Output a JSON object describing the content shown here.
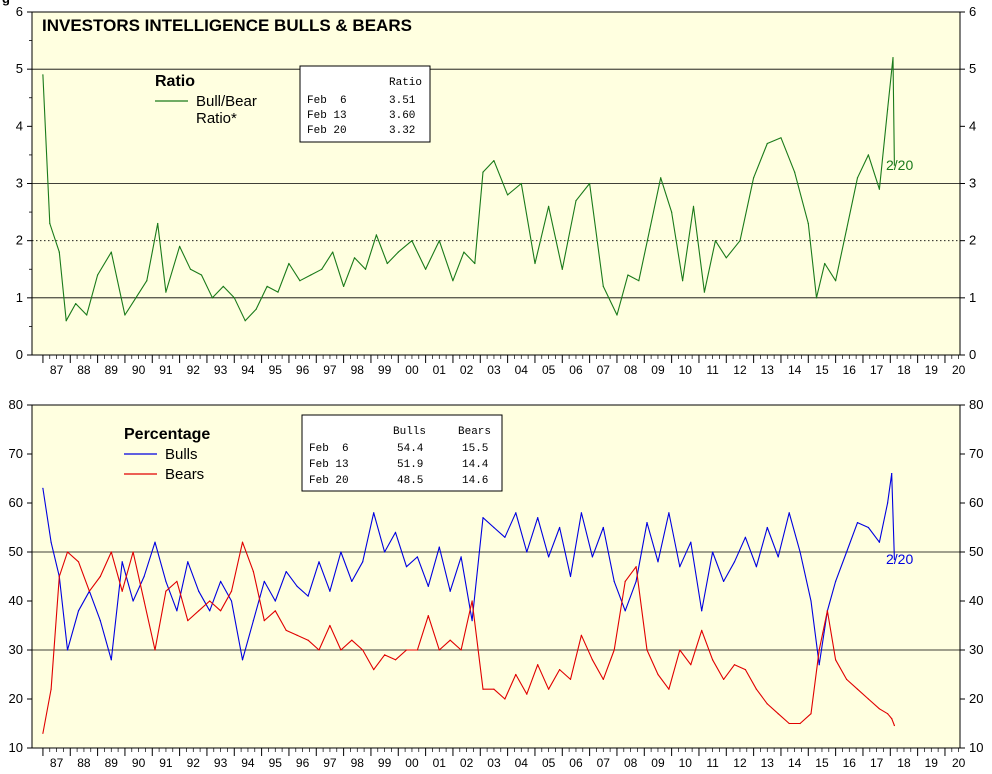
{
  "chart_data": [
    {
      "type": "line",
      "title": "INVESTORS INTELLIGENCE BULLS & BEARS",
      "legend_title": "Ratio",
      "legend_placement": "top-left",
      "ylim": [
        0,
        6
      ],
      "yticks": [
        "0",
        "1",
        "2",
        "3",
        "4",
        "5",
        "6"
      ],
      "x_categories": [
        "87",
        "88",
        "89",
        "90",
        "91",
        "92",
        "93",
        "94",
        "95",
        "96",
        "97",
        "98",
        "99",
        "00",
        "01",
        "02",
        "03",
        "04",
        "05",
        "06",
        "07",
        "08",
        "09",
        "10",
        "11",
        "12",
        "13",
        "14",
        "15",
        "16",
        "17",
        "18",
        "19",
        "20"
      ],
      "reference_lines": [
        {
          "y": 1,
          "style": "solid"
        },
        {
          "y": 2,
          "style": "dotted"
        },
        {
          "y": 3,
          "style": "solid"
        },
        {
          "y": 5,
          "style": "solid"
        }
      ],
      "series": [
        {
          "name": "Bull/Bear Ratio*",
          "color": "#1a7a1a",
          "end_label": "2/20",
          "x": [
            1987.0,
            1987.25,
            1987.6,
            1987.85,
            1988.2,
            1988.6,
            1989.0,
            1989.5,
            1990.0,
            1990.4,
            1990.8,
            1991.2,
            1991.5,
            1992.0,
            1992.4,
            1992.8,
            1993.2,
            1993.6,
            1994.0,
            1994.4,
            1994.8,
            1995.2,
            1995.6,
            1996.0,
            1996.4,
            1996.8,
            1997.2,
            1997.6,
            1998.0,
            1998.4,
            1998.8,
            1999.2,
            1999.6,
            2000.0,
            2000.5,
            2001.0,
            2001.5,
            2002.0,
            2002.4,
            2002.8,
            2003.1,
            2003.5,
            2004.0,
            2004.5,
            2005.0,
            2005.5,
            2006.0,
            2006.5,
            2007.0,
            2007.5,
            2008.0,
            2008.4,
            2008.8,
            2009.2,
            2009.6,
            2010.0,
            2010.4,
            2010.8,
            2011.2,
            2011.6,
            2012.0,
            2012.5,
            2013.0,
            2013.5,
            2014.0,
            2014.5,
            2015.0,
            2015.3,
            2015.6,
            2016.0,
            2016.4,
            2016.8,
            2017.2,
            2017.6,
            2017.9,
            2018.1,
            2018.15
          ],
          "values": [
            4.9,
            2.3,
            1.8,
            0.6,
            0.9,
            0.7,
            1.4,
            1.8,
            0.7,
            1.0,
            1.3,
            2.3,
            1.1,
            1.9,
            1.5,
            1.4,
            1.0,
            1.2,
            1.0,
            0.6,
            0.8,
            1.2,
            1.1,
            1.6,
            1.3,
            1.4,
            1.5,
            1.8,
            1.2,
            1.7,
            1.5,
            2.1,
            1.6,
            1.8,
            2.0,
            1.5,
            2.0,
            1.3,
            1.8,
            1.6,
            3.2,
            3.4,
            2.8,
            3.0,
            1.6,
            2.6,
            1.5,
            2.7,
            3.0,
            1.2,
            0.7,
            1.4,
            1.3,
            2.2,
            3.1,
            2.5,
            1.3,
            2.6,
            1.1,
            2.0,
            1.7,
            2.0,
            3.1,
            3.7,
            3.8,
            3.2,
            2.3,
            1.0,
            1.6,
            1.3,
            2.2,
            3.1,
            3.5,
            2.9,
            4.3,
            5.2,
            3.32
          ]
        }
      ],
      "table": {
        "header": [
          "",
          "Ratio"
        ],
        "rows": [
          [
            "Feb  6",
            "3.51"
          ],
          [
            "Feb 13",
            "3.60"
          ],
          [
            "Feb 20",
            "3.32"
          ]
        ]
      }
    },
    {
      "type": "line",
      "legend_title": "Percentage",
      "legend_placement": "top-left",
      "ylim": [
        10,
        80
      ],
      "yticks": [
        "10",
        "20",
        "30",
        "40",
        "50",
        "60",
        "70",
        "80"
      ],
      "x_categories": [
        "87",
        "88",
        "89",
        "90",
        "91",
        "92",
        "93",
        "94",
        "95",
        "96",
        "97",
        "98",
        "99",
        "00",
        "01",
        "02",
        "03",
        "04",
        "05",
        "06",
        "07",
        "08",
        "09",
        "10",
        "11",
        "12",
        "13",
        "14",
        "15",
        "16",
        "17",
        "18",
        "19",
        "20"
      ],
      "reference_lines": [
        {
          "y": 30,
          "style": "solid"
        },
        {
          "y": 50,
          "style": "solid"
        }
      ],
      "series": [
        {
          "name": "Bulls",
          "color": "#0000e0",
          "end_label": "2/20",
          "x": [
            1987.0,
            1987.3,
            1987.6,
            1987.9,
            1988.3,
            1988.7,
            1989.1,
            1989.5,
            1989.9,
            1990.3,
            1990.7,
            1991.1,
            1991.5,
            1991.9,
            1992.3,
            1992.7,
            1993.1,
            1993.5,
            1993.9,
            1994.3,
            1994.7,
            1995.1,
            1995.5,
            1995.9,
            1996.3,
            1996.7,
            1997.1,
            1997.5,
            1997.9,
            1998.3,
            1998.7,
            1999.1,
            1999.5,
            1999.9,
            2000.3,
            2000.7,
            2001.1,
            2001.5,
            2001.9,
            2002.3,
            2002.7,
            2003.1,
            2003.5,
            2003.9,
            2004.3,
            2004.7,
            2005.1,
            2005.5,
            2005.9,
            2006.3,
            2006.7,
            2007.1,
            2007.5,
            2007.9,
            2008.3,
            2008.7,
            2009.1,
            2009.5,
            2009.9,
            2010.3,
            2010.7,
            2011.1,
            2011.5,
            2011.9,
            2012.3,
            2012.7,
            2013.1,
            2013.5,
            2013.9,
            2014.3,
            2014.7,
            2015.1,
            2015.4,
            2015.7,
            2016.0,
            2016.4,
            2016.8,
            2017.2,
            2017.6,
            2017.9,
            2018.05,
            2018.15
          ],
          "values": [
            63,
            52,
            45,
            30,
            38,
            42,
            36,
            28,
            48,
            40,
            45,
            52,
            44,
            38,
            48,
            42,
            38,
            44,
            40,
            28,
            36,
            44,
            40,
            46,
            43,
            41,
            48,
            42,
            50,
            44,
            48,
            58,
            50,
            54,
            47,
            49,
            43,
            51,
            42,
            49,
            36,
            57,
            55,
            53,
            58,
            50,
            57,
            49,
            55,
            45,
            58,
            49,
            55,
            44,
            38,
            44,
            56,
            48,
            58,
            47,
            52,
            38,
            50,
            44,
            48,
            53,
            47,
            55,
            49,
            58,
            50,
            40,
            27,
            38,
            44,
            50,
            56,
            55,
            52,
            60,
            66,
            48.5
          ]
        },
        {
          "name": "Bears",
          "color": "#e00000",
          "x": [
            1987.0,
            1987.3,
            1987.6,
            1987.9,
            1988.3,
            1988.7,
            1989.1,
            1989.5,
            1989.9,
            1990.3,
            1990.7,
            1991.1,
            1991.5,
            1991.9,
            1992.3,
            1992.7,
            1993.1,
            1993.5,
            1993.9,
            1994.3,
            1994.7,
            1995.1,
            1995.5,
            1995.9,
            1996.3,
            1996.7,
            1997.1,
            1997.5,
            1997.9,
            1998.3,
            1998.7,
            1999.1,
            1999.5,
            1999.9,
            2000.3,
            2000.7,
            2001.1,
            2001.5,
            2001.9,
            2002.3,
            2002.7,
            2003.1,
            2003.5,
            2003.9,
            2004.3,
            2004.7,
            2005.1,
            2005.5,
            2005.9,
            2006.3,
            2006.7,
            2007.1,
            2007.5,
            2007.9,
            2008.3,
            2008.7,
            2009.1,
            2009.5,
            2009.9,
            2010.3,
            2010.7,
            2011.1,
            2011.5,
            2011.9,
            2012.3,
            2012.7,
            2013.1,
            2013.5,
            2013.9,
            2014.3,
            2014.7,
            2015.1,
            2015.4,
            2015.7,
            2016.0,
            2016.4,
            2016.8,
            2017.2,
            2017.6,
            2017.9,
            2018.05,
            2018.15
          ],
          "values": [
            13,
            22,
            45,
            50,
            48,
            42,
            45,
            50,
            42,
            50,
            40,
            30,
            42,
            44,
            36,
            38,
            40,
            38,
            42,
            52,
            46,
            36,
            38,
            34,
            33,
            32,
            30,
            35,
            30,
            32,
            30,
            26,
            29,
            28,
            30,
            30,
            37,
            30,
            32,
            30,
            40,
            22,
            22,
            20,
            25,
            21,
            27,
            22,
            26,
            24,
            33,
            28,
            24,
            30,
            44,
            47,
            30,
            25,
            22,
            30,
            27,
            34,
            28,
            24,
            27,
            26,
            22,
            19,
            17,
            15,
            15,
            17,
            30,
            38,
            28,
            24,
            22,
            20,
            18,
            17,
            16,
            14.6
          ]
        }
      ],
      "table": {
        "header": [
          "",
          "Bulls",
          "Bears"
        ],
        "rows": [
          [
            "Feb  6",
            "54.4",
            "15.5"
          ],
          [
            "Feb 13",
            "51.9",
            "14.4"
          ],
          [
            "Feb 20",
            "48.5",
            "14.6"
          ]
        ]
      }
    }
  ],
  "top_left_fragment": "g"
}
